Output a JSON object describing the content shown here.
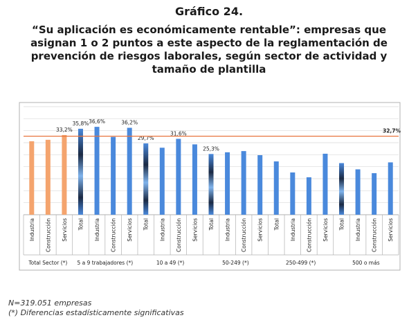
{
  "figure": {
    "number": "Gráfico 24.",
    "title": "“Su aplicación es económicamente rentable”: empresas que asignan 1 o 2 puntos a este aspecto de la reglamentación de prevención de riesgos laborales, según sector de actividad y tamaño de plantilla"
  },
  "notes": {
    "n": "N=319.051 empresas",
    "significance": "(*) Diferencias estadísticamente significativas"
  },
  "colors": {
    "sector_bar": "#F4A46E",
    "bar": "#4A89DC",
    "bar_highlight": "#7FB3EC",
    "total_bar_dark": "#1B2A44",
    "reference_line": "#E8743B",
    "frame": "#B0B0B0",
    "grid": "#D9D9D9"
  },
  "chart_data": {
    "type": "bar",
    "ylim": [
      0,
      45
    ],
    "reference_line": {
      "value": 32.7,
      "label": "32,7%"
    },
    "groups": [
      {
        "label": "Total Sector (*)",
        "bars": [
          {
            "category": "Industria",
            "value": 30.6,
            "kind": "sector"
          },
          {
            "category": "Construcción",
            "value": 31.2,
            "kind": "sector"
          },
          {
            "category": "Servicios",
            "value": 33.2,
            "kind": "sector",
            "data_label": "33,2%"
          }
        ]
      },
      {
        "label": "5 a 9 trabajadores (*)",
        "bars": [
          {
            "category": "Total",
            "value": 35.8,
            "kind": "total",
            "data_label": "35,8%"
          },
          {
            "category": "Industria",
            "value": 36.6,
            "kind": "normal",
            "data_label": "36,6%"
          },
          {
            "category": "Construcción",
            "value": 32.4,
            "kind": "normal"
          },
          {
            "category": "Servicios",
            "value": 36.2,
            "kind": "normal",
            "data_label": "36,2%"
          }
        ]
      },
      {
        "label": "10 a 49 (*)",
        "bars": [
          {
            "category": "Total",
            "value": 29.7,
            "kind": "total",
            "data_label": "29,7%"
          },
          {
            "category": "Industria",
            "value": 27.9,
            "kind": "normal"
          },
          {
            "category": "Construcción",
            "value": 31.6,
            "kind": "normal",
            "data_label": "31,6%"
          },
          {
            "category": "Servicios",
            "value": 29.3,
            "kind": "normal"
          }
        ]
      },
      {
        "label": "50-249 (*)",
        "bars": [
          {
            "category": "Total",
            "value": 25.3,
            "kind": "total",
            "data_label": "25,3%"
          },
          {
            "category": "Industria",
            "value": 26.0,
            "kind": "normal"
          },
          {
            "category": "Construcción",
            "value": 26.5,
            "kind": "normal"
          },
          {
            "category": "Servicios",
            "value": 24.8,
            "kind": "normal"
          }
        ]
      },
      {
        "label": "250-499 (*)",
        "bars": [
          {
            "category": "Total",
            "value": 22.2,
            "kind": "normal"
          },
          {
            "category": "Industria",
            "value": 17.6,
            "kind": "normal"
          },
          {
            "category": "Construcción",
            "value": 15.6,
            "kind": "normal"
          },
          {
            "category": "Servicios",
            "value": 25.4,
            "kind": "normal"
          }
        ]
      },
      {
        "label": "500 o más",
        "bars": [
          {
            "category": "Total",
            "value": 21.5,
            "kind": "total"
          },
          {
            "category": "Industria",
            "value": 18.9,
            "kind": "normal"
          },
          {
            "category": "Construcción",
            "value": 17.3,
            "kind": "normal"
          },
          {
            "category": "Servicios",
            "value": 21.8,
            "kind": "normal"
          }
        ]
      }
    ]
  }
}
